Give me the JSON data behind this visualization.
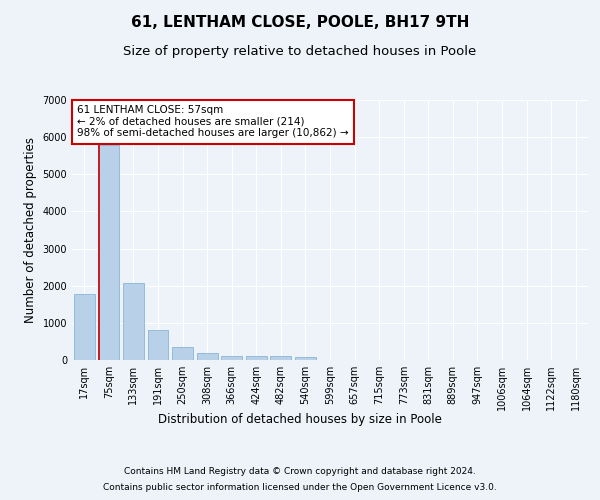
{
  "title": "61, LENTHAM CLOSE, POOLE, BH17 9TH",
  "subtitle": "Size of property relative to detached houses in Poole",
  "xlabel": "Distribution of detached houses by size in Poole",
  "ylabel": "Number of detached properties",
  "footer_line1": "Contains HM Land Registry data © Crown copyright and database right 2024.",
  "footer_line2": "Contains public sector information licensed under the Open Government Licence v3.0.",
  "categories": [
    "17sqm",
    "75sqm",
    "133sqm",
    "191sqm",
    "250sqm",
    "308sqm",
    "366sqm",
    "424sqm",
    "482sqm",
    "540sqm",
    "599sqm",
    "657sqm",
    "715sqm",
    "773sqm",
    "831sqm",
    "889sqm",
    "947sqm",
    "1006sqm",
    "1064sqm",
    "1122sqm",
    "1180sqm"
  ],
  "values": [
    1780,
    5780,
    2060,
    820,
    340,
    185,
    115,
    100,
    100,
    75,
    0,
    0,
    0,
    0,
    0,
    0,
    0,
    0,
    0,
    0,
    0
  ],
  "bar_color": "#b8d0e8",
  "bar_edgecolor": "#7aaed4",
  "annotation_text_line1": "61 LENTHAM CLOSE: 57sqm",
  "annotation_text_line2": "← 2% of detached houses are smaller (214)",
  "annotation_text_line3": "98% of semi-detached houses are larger (10,862) →",
  "annotation_box_color": "#ffffff",
  "annotation_box_edgecolor": "#cc0000",
  "vline_color": "#cc0000",
  "vline_x": 0.58,
  "ylim": [
    0,
    7000
  ],
  "yticks": [
    0,
    1000,
    2000,
    3000,
    4000,
    5000,
    6000,
    7000
  ],
  "background_color": "#edf3f9",
  "plot_background": "#edf3f9",
  "title_fontsize": 11,
  "subtitle_fontsize": 9.5,
  "axis_label_fontsize": 8.5,
  "tick_fontsize": 7,
  "footer_fontsize": 6.5,
  "annotation_fontsize": 7.5
}
